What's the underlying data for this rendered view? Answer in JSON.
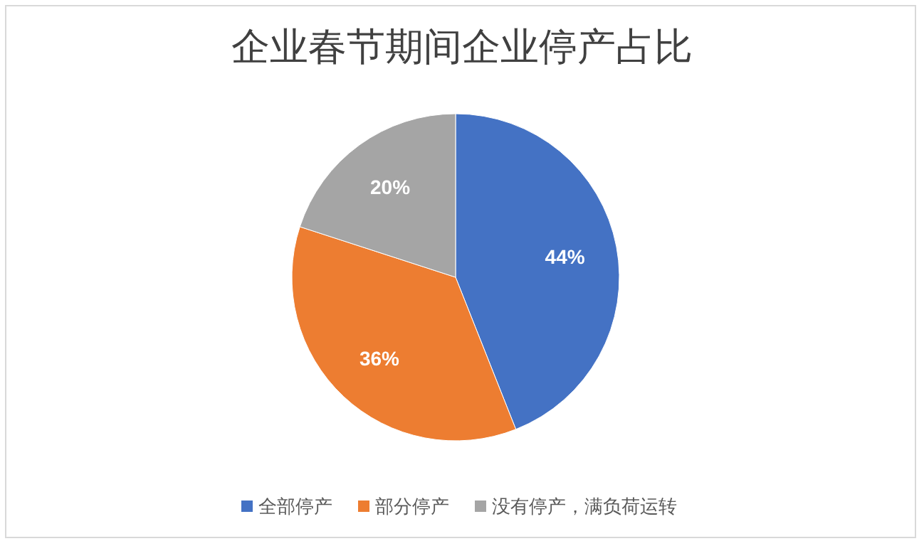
{
  "chart_data": {
    "type": "pie",
    "title": "企业春节期间企业停产占比",
    "categories": [
      "全部停产",
      "部分停产",
      "没有停产，满负荷运转"
    ],
    "values": [
      44,
      36,
      20
    ],
    "colors": [
      "#4472c4",
      "#ed7d31",
      "#a5a5a5"
    ],
    "value_labels": [
      "44%",
      "36%",
      "20%"
    ],
    "legend": "bottom"
  }
}
